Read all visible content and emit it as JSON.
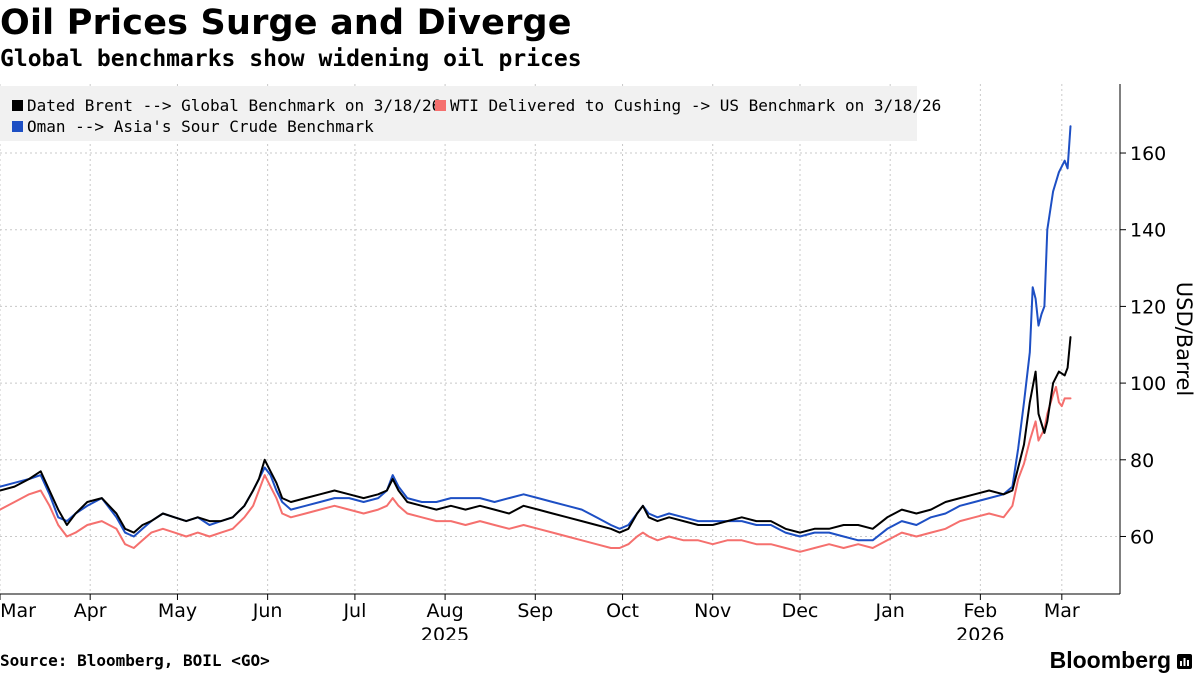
{
  "header": {
    "title": "Oil Prices Surge and Diverge",
    "subtitle": "Global benchmarks show widening oil prices"
  },
  "footer": {
    "source": "Source: Bloomberg, BOIL <GO>",
    "brand": "Bloomberg",
    "brand_icon": "chart-bars-icon"
  },
  "chart_data": {
    "type": "line",
    "title": "Oil Prices Surge and Diverge",
    "subtitle": "Global benchmarks show widening oil prices",
    "ylabel": "USD/Barrel",
    "xlabel": "",
    "ylim": [
      45,
      178
    ],
    "yticks": [
      60,
      80,
      100,
      120,
      140,
      160
    ],
    "grid": true,
    "legend_position": "top-left",
    "x_domain": [
      0,
      385
    ],
    "x_ticks": [
      {
        "label": "Mar",
        "day": 0
      },
      {
        "label": "Apr",
        "day": 31
      },
      {
        "label": "May",
        "day": 61
      },
      {
        "label": "Jun",
        "day": 92
      },
      {
        "label": "Jul",
        "day": 122
      },
      {
        "label": "Aug",
        "day": 153
      },
      {
        "label": "Sep",
        "day": 184
      },
      {
        "label": "Oct",
        "day": 214
      },
      {
        "label": "Nov",
        "day": 245
      },
      {
        "label": "Dec",
        "day": 275
      },
      {
        "label": "Jan",
        "day": 306
      },
      {
        "label": "Feb",
        "day": 337
      },
      {
        "label": "Mar",
        "day": 365
      }
    ],
    "year_labels": [
      {
        "label": "2025",
        "day": 153
      },
      {
        "label": "2026",
        "day": 337
      }
    ],
    "series": [
      {
        "name": "Dated Brent --> Global Benchmark on 3/18/26",
        "color": "#000000",
        "points": [
          [
            0,
            72
          ],
          [
            5,
            73
          ],
          [
            10,
            75
          ],
          [
            14,
            77
          ],
          [
            17,
            72
          ],
          [
            20,
            67
          ],
          [
            23,
            63
          ],
          [
            26,
            66
          ],
          [
            30,
            69
          ],
          [
            35,
            70
          ],
          [
            40,
            66
          ],
          [
            43,
            62
          ],
          [
            46,
            61
          ],
          [
            49,
            63
          ],
          [
            52,
            64
          ],
          [
            56,
            66
          ],
          [
            60,
            65
          ],
          [
            64,
            64
          ],
          [
            68,
            65
          ],
          [
            72,
            64
          ],
          [
            76,
            64
          ],
          [
            80,
            65
          ],
          [
            84,
            68
          ],
          [
            87,
            72
          ],
          [
            89,
            75
          ],
          [
            91,
            80
          ],
          [
            93,
            77
          ],
          [
            95,
            74
          ],
          [
            97,
            70
          ],
          [
            100,
            69
          ],
          [
            105,
            70
          ],
          [
            110,
            71
          ],
          [
            115,
            72
          ],
          [
            120,
            71
          ],
          [
            125,
            70
          ],
          [
            130,
            71
          ],
          [
            133,
            72
          ],
          [
            135,
            75
          ],
          [
            137,
            72
          ],
          [
            140,
            69
          ],
          [
            145,
            68
          ],
          [
            150,
            67
          ],
          [
            155,
            68
          ],
          [
            160,
            67
          ],
          [
            165,
            68
          ],
          [
            170,
            67
          ],
          [
            175,
            66
          ],
          [
            180,
            68
          ],
          [
            185,
            67
          ],
          [
            190,
            66
          ],
          [
            195,
            65
          ],
          [
            200,
            64
          ],
          [
            205,
            63
          ],
          [
            210,
            62
          ],
          [
            213,
            61
          ],
          [
            216,
            62
          ],
          [
            219,
            66
          ],
          [
            221,
            68
          ],
          [
            223,
            65
          ],
          [
            226,
            64
          ],
          [
            230,
            65
          ],
          [
            235,
            64
          ],
          [
            240,
            63
          ],
          [
            245,
            63
          ],
          [
            250,
            64
          ],
          [
            255,
            65
          ],
          [
            260,
            64
          ],
          [
            265,
            64
          ],
          [
            270,
            62
          ],
          [
            275,
            61
          ],
          [
            280,
            62
          ],
          [
            285,
            62
          ],
          [
            290,
            63
          ],
          [
            295,
            63
          ],
          [
            300,
            62
          ],
          [
            305,
            65
          ],
          [
            310,
            67
          ],
          [
            315,
            66
          ],
          [
            320,
            67
          ],
          [
            325,
            69
          ],
          [
            330,
            70
          ],
          [
            335,
            71
          ],
          [
            340,
            72
          ],
          [
            345,
            71
          ],
          [
            348,
            72
          ],
          [
            350,
            78
          ],
          [
            352,
            84
          ],
          [
            354,
            95
          ],
          [
            356,
            103
          ],
          [
            357,
            92
          ],
          [
            359,
            87
          ],
          [
            360,
            90
          ],
          [
            362,
            100
          ],
          [
            364,
            103
          ],
          [
            366,
            102
          ],
          [
            367,
            104
          ],
          [
            368,
            112
          ]
        ]
      },
      {
        "name": "WTI Delivered to Cushing -> US Benchmark on 3/18/26",
        "color": "#F5706E",
        "points": [
          [
            0,
            67
          ],
          [
            5,
            69
          ],
          [
            10,
            71
          ],
          [
            14,
            72
          ],
          [
            17,
            68
          ],
          [
            20,
            63
          ],
          [
            23,
            60
          ],
          [
            26,
            61
          ],
          [
            30,
            63
          ],
          [
            35,
            64
          ],
          [
            40,
            62
          ],
          [
            43,
            58
          ],
          [
            46,
            57
          ],
          [
            49,
            59
          ],
          [
            52,
            61
          ],
          [
            56,
            62
          ],
          [
            60,
            61
          ],
          [
            64,
            60
          ],
          [
            68,
            61
          ],
          [
            72,
            60
          ],
          [
            76,
            61
          ],
          [
            80,
            62
          ],
          [
            84,
            65
          ],
          [
            87,
            68
          ],
          [
            89,
            72
          ],
          [
            91,
            76
          ],
          [
            93,
            73
          ],
          [
            95,
            70
          ],
          [
            97,
            66
          ],
          [
            100,
            65
          ],
          [
            105,
            66
          ],
          [
            110,
            67
          ],
          [
            115,
            68
          ],
          [
            120,
            67
          ],
          [
            125,
            66
          ],
          [
            130,
            67
          ],
          [
            133,
            68
          ],
          [
            135,
            70
          ],
          [
            137,
            68
          ],
          [
            140,
            66
          ],
          [
            145,
            65
          ],
          [
            150,
            64
          ],
          [
            155,
            64
          ],
          [
            160,
            63
          ],
          [
            165,
            64
          ],
          [
            170,
            63
          ],
          [
            175,
            62
          ],
          [
            180,
            63
          ],
          [
            185,
            62
          ],
          [
            190,
            61
          ],
          [
            195,
            60
          ],
          [
            200,
            59
          ],
          [
            205,
            58
          ],
          [
            210,
            57
          ],
          [
            213,
            57
          ],
          [
            216,
            58
          ],
          [
            219,
            60
          ],
          [
            221,
            61
          ],
          [
            223,
            60
          ],
          [
            226,
            59
          ],
          [
            230,
            60
          ],
          [
            235,
            59
          ],
          [
            240,
            59
          ],
          [
            245,
            58
          ],
          [
            250,
            59
          ],
          [
            255,
            59
          ],
          [
            260,
            58
          ],
          [
            265,
            58
          ],
          [
            270,
            57
          ],
          [
            275,
            56
          ],
          [
            280,
            57
          ],
          [
            285,
            58
          ],
          [
            290,
            57
          ],
          [
            295,
            58
          ],
          [
            300,
            57
          ],
          [
            305,
            59
          ],
          [
            310,
            61
          ],
          [
            315,
            60
          ],
          [
            320,
            61
          ],
          [
            325,
            62
          ],
          [
            330,
            64
          ],
          [
            335,
            65
          ],
          [
            340,
            66
          ],
          [
            345,
            65
          ],
          [
            348,
            68
          ],
          [
            350,
            75
          ],
          [
            352,
            79
          ],
          [
            354,
            85
          ],
          [
            356,
            90
          ],
          [
            357,
            85
          ],
          [
            359,
            88
          ],
          [
            360,
            92
          ],
          [
            362,
            97
          ],
          [
            363,
            99
          ],
          [
            364,
            95
          ],
          [
            365,
            94
          ],
          [
            366,
            96
          ],
          [
            368,
            96
          ]
        ]
      },
      {
        "name": "Oman --> Asia's Sour Crude Benchmark",
        "color": "#1D4FC4",
        "points": [
          [
            0,
            73
          ],
          [
            5,
            74
          ],
          [
            10,
            75
          ],
          [
            14,
            76
          ],
          [
            17,
            71
          ],
          [
            20,
            65
          ],
          [
            23,
            64
          ],
          [
            26,
            66
          ],
          [
            30,
            68
          ],
          [
            35,
            70
          ],
          [
            40,
            65
          ],
          [
            43,
            61
          ],
          [
            46,
            60
          ],
          [
            49,
            62
          ],
          [
            52,
            64
          ],
          [
            56,
            66
          ],
          [
            60,
            65
          ],
          [
            64,
            64
          ],
          [
            68,
            65
          ],
          [
            72,
            63
          ],
          [
            76,
            64
          ],
          [
            80,
            65
          ],
          [
            84,
            68
          ],
          [
            87,
            72
          ],
          [
            89,
            75
          ],
          [
            91,
            78
          ],
          [
            93,
            76
          ],
          [
            95,
            72
          ],
          [
            97,
            69
          ],
          [
            100,
            67
          ],
          [
            105,
            68
          ],
          [
            110,
            69
          ],
          [
            115,
            70
          ],
          [
            120,
            70
          ],
          [
            125,
            69
          ],
          [
            130,
            70
          ],
          [
            133,
            72
          ],
          [
            135,
            76
          ],
          [
            137,
            73
          ],
          [
            140,
            70
          ],
          [
            145,
            69
          ],
          [
            150,
            69
          ],
          [
            155,
            70
          ],
          [
            160,
            70
          ],
          [
            165,
            70
          ],
          [
            170,
            69
          ],
          [
            175,
            70
          ],
          [
            180,
            71
          ],
          [
            185,
            70
          ],
          [
            190,
            69
          ],
          [
            195,
            68
          ],
          [
            200,
            67
          ],
          [
            205,
            65
          ],
          [
            210,
            63
          ],
          [
            213,
            62
          ],
          [
            216,
            63
          ],
          [
            219,
            66
          ],
          [
            221,
            68
          ],
          [
            223,
            66
          ],
          [
            226,
            65
          ],
          [
            230,
            66
          ],
          [
            235,
            65
          ],
          [
            240,
            64
          ],
          [
            245,
            64
          ],
          [
            250,
            64
          ],
          [
            255,
            64
          ],
          [
            260,
            63
          ],
          [
            265,
            63
          ],
          [
            270,
            61
          ],
          [
            275,
            60
          ],
          [
            280,
            61
          ],
          [
            285,
            61
          ],
          [
            290,
            60
          ],
          [
            295,
            59
          ],
          [
            300,
            59
          ],
          [
            305,
            62
          ],
          [
            310,
            64
          ],
          [
            315,
            63
          ],
          [
            320,
            65
          ],
          [
            325,
            66
          ],
          [
            330,
            68
          ],
          [
            335,
            69
          ],
          [
            340,
            70
          ],
          [
            345,
            71
          ],
          [
            348,
            73
          ],
          [
            350,
            83
          ],
          [
            352,
            95
          ],
          [
            354,
            108
          ],
          [
            355,
            125
          ],
          [
            356,
            122
          ],
          [
            357,
            115
          ],
          [
            358,
            118
          ],
          [
            359,
            120
          ],
          [
            360,
            140
          ],
          [
            362,
            150
          ],
          [
            364,
            155
          ],
          [
            366,
            158
          ],
          [
            367,
            156
          ],
          [
            368,
            167
          ]
        ]
      }
    ]
  }
}
